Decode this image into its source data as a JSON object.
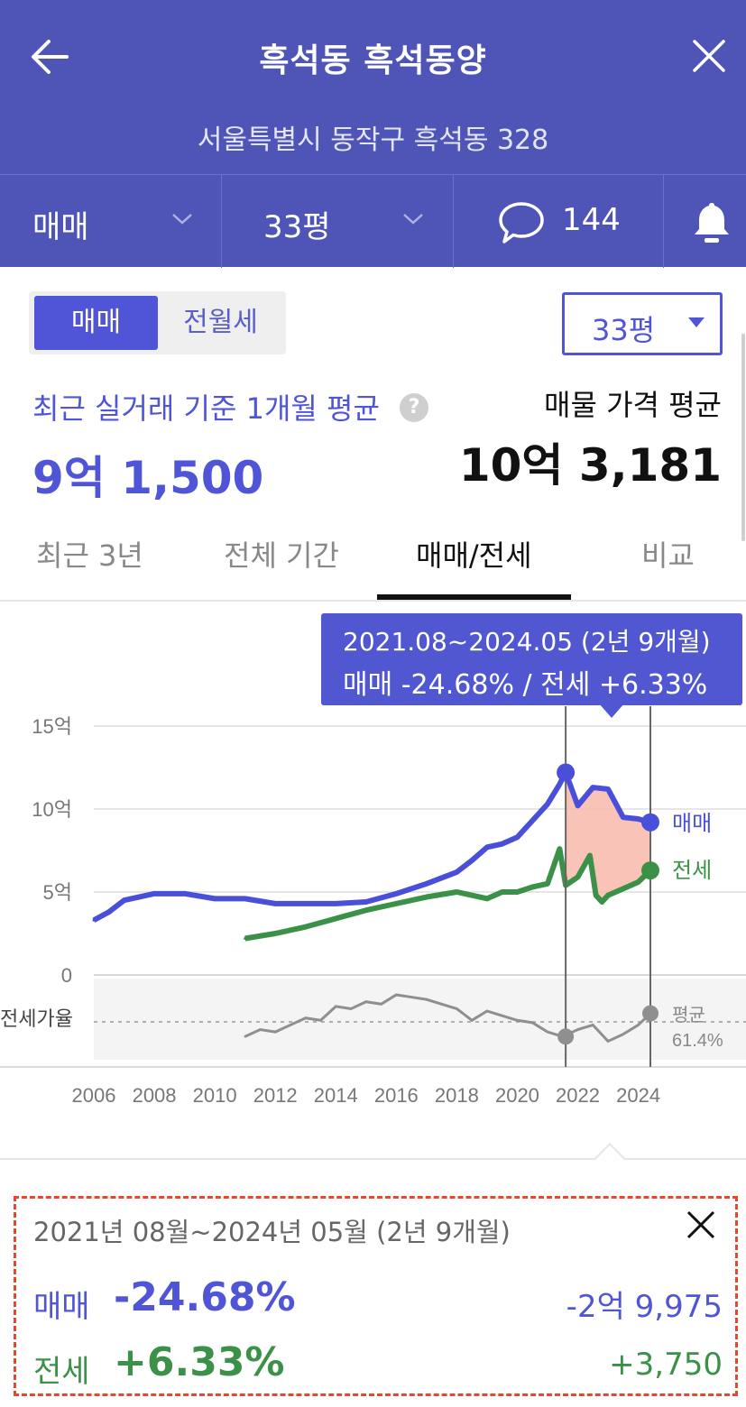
{
  "header": {
    "title": "흑석동 흑석동양",
    "address": "서울특별시 동작구 흑석동 328",
    "trade_type": "매매",
    "size": "33평",
    "comment_count": "144"
  },
  "toggle": {
    "active": "매매",
    "inactive": "전월세"
  },
  "size_select": "33평",
  "summary_top": {
    "recent_label": "최근 실거래 기준 1개월 평균",
    "recent_price": "9억 1,500",
    "listing_label": "매물 가격 평균",
    "listing_price": "10억 3,181"
  },
  "tabs": [
    "최근 3년",
    "전체 기간",
    "매매/전세",
    "비교"
  ],
  "active_tab": "매매/전세",
  "tooltip": {
    "line1": "2021.08~2024.05 (2년 9개월)",
    "line2": "매매 -24.68%  /  전세 +6.33%"
  },
  "chart_data": {
    "type": "line",
    "y_ticks": [
      "15억",
      "10억",
      "5억",
      "0"
    ],
    "ylim": [
      0,
      15
    ],
    "x_ticks": [
      "2006",
      "2008",
      "2010",
      "2012",
      "2014",
      "2016",
      "2018",
      "2020",
      "2022",
      "2024"
    ],
    "xlim": [
      2006,
      2024.6
    ],
    "series": [
      {
        "name": "매매",
        "color": "#4a4fd9",
        "x": [
          2006.0,
          2006.5,
          2007.0,
          2008.0,
          2009.0,
          2010.0,
          2011.0,
          2012.0,
          2013.0,
          2014.0,
          2015.0,
          2016.0,
          2017.0,
          2018.0,
          2018.5,
          2019.0,
          2019.5,
          2020.0,
          2020.5,
          2021.0,
          2021.4,
          2021.6,
          2022.0,
          2022.5,
          2023.0,
          2023.5,
          2024.0,
          2024.4
        ],
        "values": [
          3.3,
          3.8,
          4.5,
          4.9,
          4.9,
          4.6,
          4.6,
          4.3,
          4.3,
          4.3,
          4.4,
          4.9,
          5.5,
          6.2,
          6.9,
          7.7,
          7.9,
          8.3,
          9.3,
          10.3,
          11.5,
          12.2,
          10.2,
          11.3,
          11.2,
          9.5,
          9.4,
          9.2
        ]
      },
      {
        "name": "전세",
        "color": "#3b9147",
        "x": [
          2011.0,
          2012.0,
          2013.0,
          2014.0,
          2015.0,
          2016.0,
          2017.0,
          2018.0,
          2019.0,
          2019.5,
          2020.0,
          2020.5,
          2021.0,
          2021.4,
          2021.6,
          2022.0,
          2022.4,
          2022.6,
          2022.8,
          2023.0,
          2023.5,
          2024.0,
          2024.4
        ],
        "values": [
          2.2,
          2.5,
          2.9,
          3.4,
          3.9,
          4.3,
          4.7,
          5.0,
          4.6,
          5.0,
          5.0,
          5.3,
          5.5,
          7.6,
          5.4,
          5.9,
          7.2,
          4.8,
          4.4,
          4.8,
          5.2,
          5.6,
          6.3
        ]
      }
    ],
    "ratio_series": {
      "label": "전세가율",
      "avg_label": "평균",
      "avg_value": "61.4%",
      "x": [
        2011.0,
        2011.5,
        2012.0,
        2012.5,
        2013.0,
        2013.5,
        2014.0,
        2014.5,
        2015.0,
        2015.5,
        2016.0,
        2016.5,
        2017.0,
        2017.5,
        2018.0,
        2018.5,
        2019.0,
        2019.5,
        2020.0,
        2020.5,
        2021.0,
        2021.5,
        2022.0,
        2022.5,
        2023.0,
        2023.5,
        2024.0,
        2024.4
      ],
      "values": [
        55,
        58,
        57,
        60,
        63,
        62,
        68,
        67,
        70,
        69,
        73,
        72,
        71,
        69,
        67,
        62,
        66,
        64,
        62,
        61,
        57,
        55,
        58,
        60,
        53,
        56,
        60,
        65
      ]
    },
    "selected_range": {
      "start": "2021.08",
      "end": "2024.05"
    }
  },
  "summary": {
    "period": "2021년 08월~2024년 05월 (2년 9개월)",
    "sale_label": "매매",
    "sale_pct": "-24.68%",
    "sale_amount": "-2억 9,975",
    "jeonse_label": "전세",
    "jeonse_pct": "+6.33%",
    "jeonse_amount": "+3,750"
  }
}
